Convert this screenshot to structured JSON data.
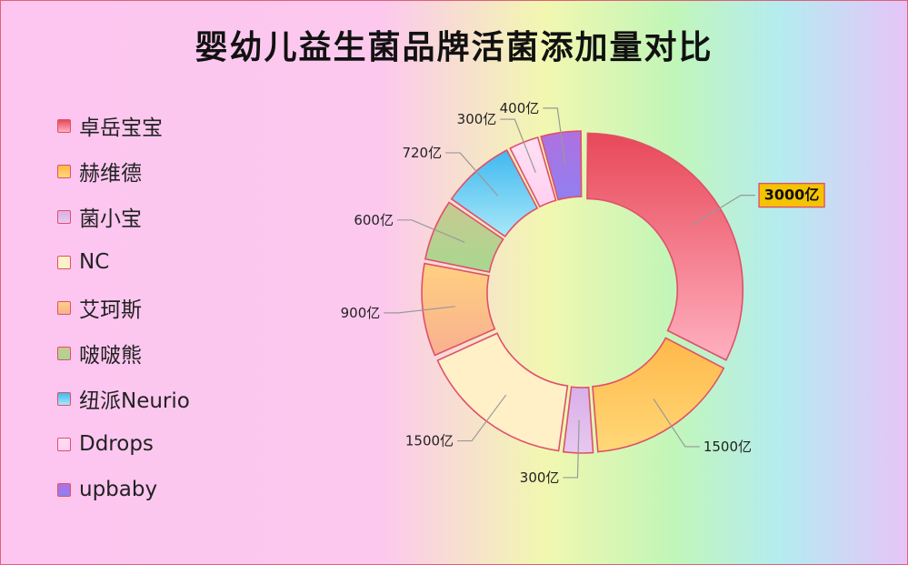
{
  "chart_data": {
    "type": "pie",
    "title": "婴幼儿益生菌品牌活菌添加量对比",
    "unit": "亿",
    "legend_position": "left",
    "categories": [
      "卓岳宝宝",
      "赫维德",
      "菌小宝",
      "NC",
      "艾珂斯",
      "啵啵熊",
      "纽派Neurio",
      "Ddrops",
      "upbaby"
    ],
    "values": [
      3000,
      1500,
      300,
      1500,
      900,
      600,
      720,
      300,
      400
    ],
    "labels": [
      "3000亿",
      "1500亿",
      "300亿",
      "1500亿",
      "900亿",
      "600亿",
      "720亿",
      "300亿",
      "400亿"
    ],
    "highlight_index": 0
  },
  "colors": {
    "slices_top": [
      "#e84858",
      "#ffb84a",
      "#d8b0e8",
      "#fff0c8",
      "#ffd080",
      "#c8c890",
      "#40b8f0",
      "#ffe0f4",
      "#b070e0"
    ],
    "slices_bottom": [
      "#ffb0c0",
      "#ffd878",
      "#e8c8f0",
      "#fff0c8",
      "#f8b090",
      "#a8d890",
      "#a8e8f8",
      "#ffd0f0",
      "#9080f0"
    ],
    "border": "#e0506a",
    "highlight_bg": "#f5c400",
    "leader": "#999999"
  }
}
